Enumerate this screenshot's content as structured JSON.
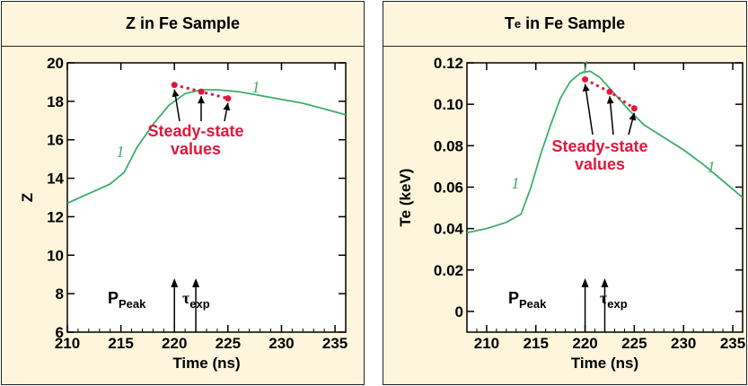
{
  "chart_data": [
    {
      "type": "line",
      "title": "Z in Fe Sample",
      "xlabel": "Time (ns)",
      "ylabel": "Z",
      "xlim": [
        210,
        236
      ],
      "ylim": [
        6,
        20
      ],
      "xticks": [
        "210",
        "215",
        "220",
        "225",
        "230",
        "235"
      ],
      "yticks": [
        "6",
        "8",
        "10",
        "12",
        "14",
        "16",
        "18",
        "20"
      ],
      "series": [
        {
          "name": "1",
          "color": "#3dae6a",
          "x": [
            210,
            212,
            214,
            215.3,
            216.5,
            218,
            219.5,
            221,
            222.5,
            224,
            226,
            228,
            230,
            232,
            234,
            236
          ],
          "y": [
            12.7,
            13.2,
            13.7,
            14.3,
            15.6,
            16.8,
            17.8,
            18.4,
            18.6,
            18.6,
            18.5,
            18.3,
            18.1,
            17.9,
            17.6,
            17.3
          ]
        }
      ],
      "curve_labels": [
        "1",
        "1"
      ],
      "steady_state": {
        "color": "#e0183c",
        "x": [
          220,
          222.5,
          225
        ],
        "y": [
          18.85,
          18.5,
          18.15
        ]
      },
      "annotation": [
        "Steady-state",
        "values"
      ],
      "markers": [
        {
          "label": "P",
          "sub": "Peak",
          "x": 220
        },
        {
          "label": "τ",
          "sub": "exp",
          "x": 222
        }
      ]
    },
    {
      "type": "line",
      "title_main": "T",
      "title_sub": "e",
      "title_rest": " in Fe Sample",
      "xlabel": "Time (ns)",
      "ylabel": "Te (keV)",
      "xlim": [
        208,
        236
      ],
      "ylim": [
        -0.01,
        0.12
      ],
      "xticks": [
        "210",
        "215",
        "220",
        "225",
        "230",
        "235"
      ],
      "yticks": [
        "0",
        "0.02",
        "0.04",
        "0.06",
        "0.08",
        "0.10",
        "0.12"
      ],
      "series": [
        {
          "name": "1",
          "color": "#3dae6a",
          "x": [
            208,
            210,
            212,
            213.5,
            214.5,
            215.5,
            216.5,
            217.5,
            218.5,
            219.5,
            220.5,
            221.5,
            223,
            224.5,
            226,
            228,
            230,
            232,
            234,
            236
          ],
          "y": [
            0.038,
            0.04,
            0.043,
            0.047,
            0.06,
            0.076,
            0.09,
            0.103,
            0.111,
            0.115,
            0.116,
            0.113,
            0.105,
            0.097,
            0.09,
            0.084,
            0.078,
            0.071,
            0.063,
            0.055
          ]
        }
      ],
      "curve_labels": [
        "1",
        "1",
        "1"
      ],
      "steady_state": {
        "color": "#e0183c",
        "x": [
          220,
          222.5,
          225
        ],
        "y": [
          0.112,
          0.106,
          0.098
        ]
      },
      "annotation": [
        "Steady-state",
        "values"
      ],
      "markers": [
        {
          "label": "P",
          "sub": "Peak",
          "x": 220
        },
        {
          "label": "τ",
          "sub": "exp",
          "x": 222
        }
      ]
    }
  ]
}
